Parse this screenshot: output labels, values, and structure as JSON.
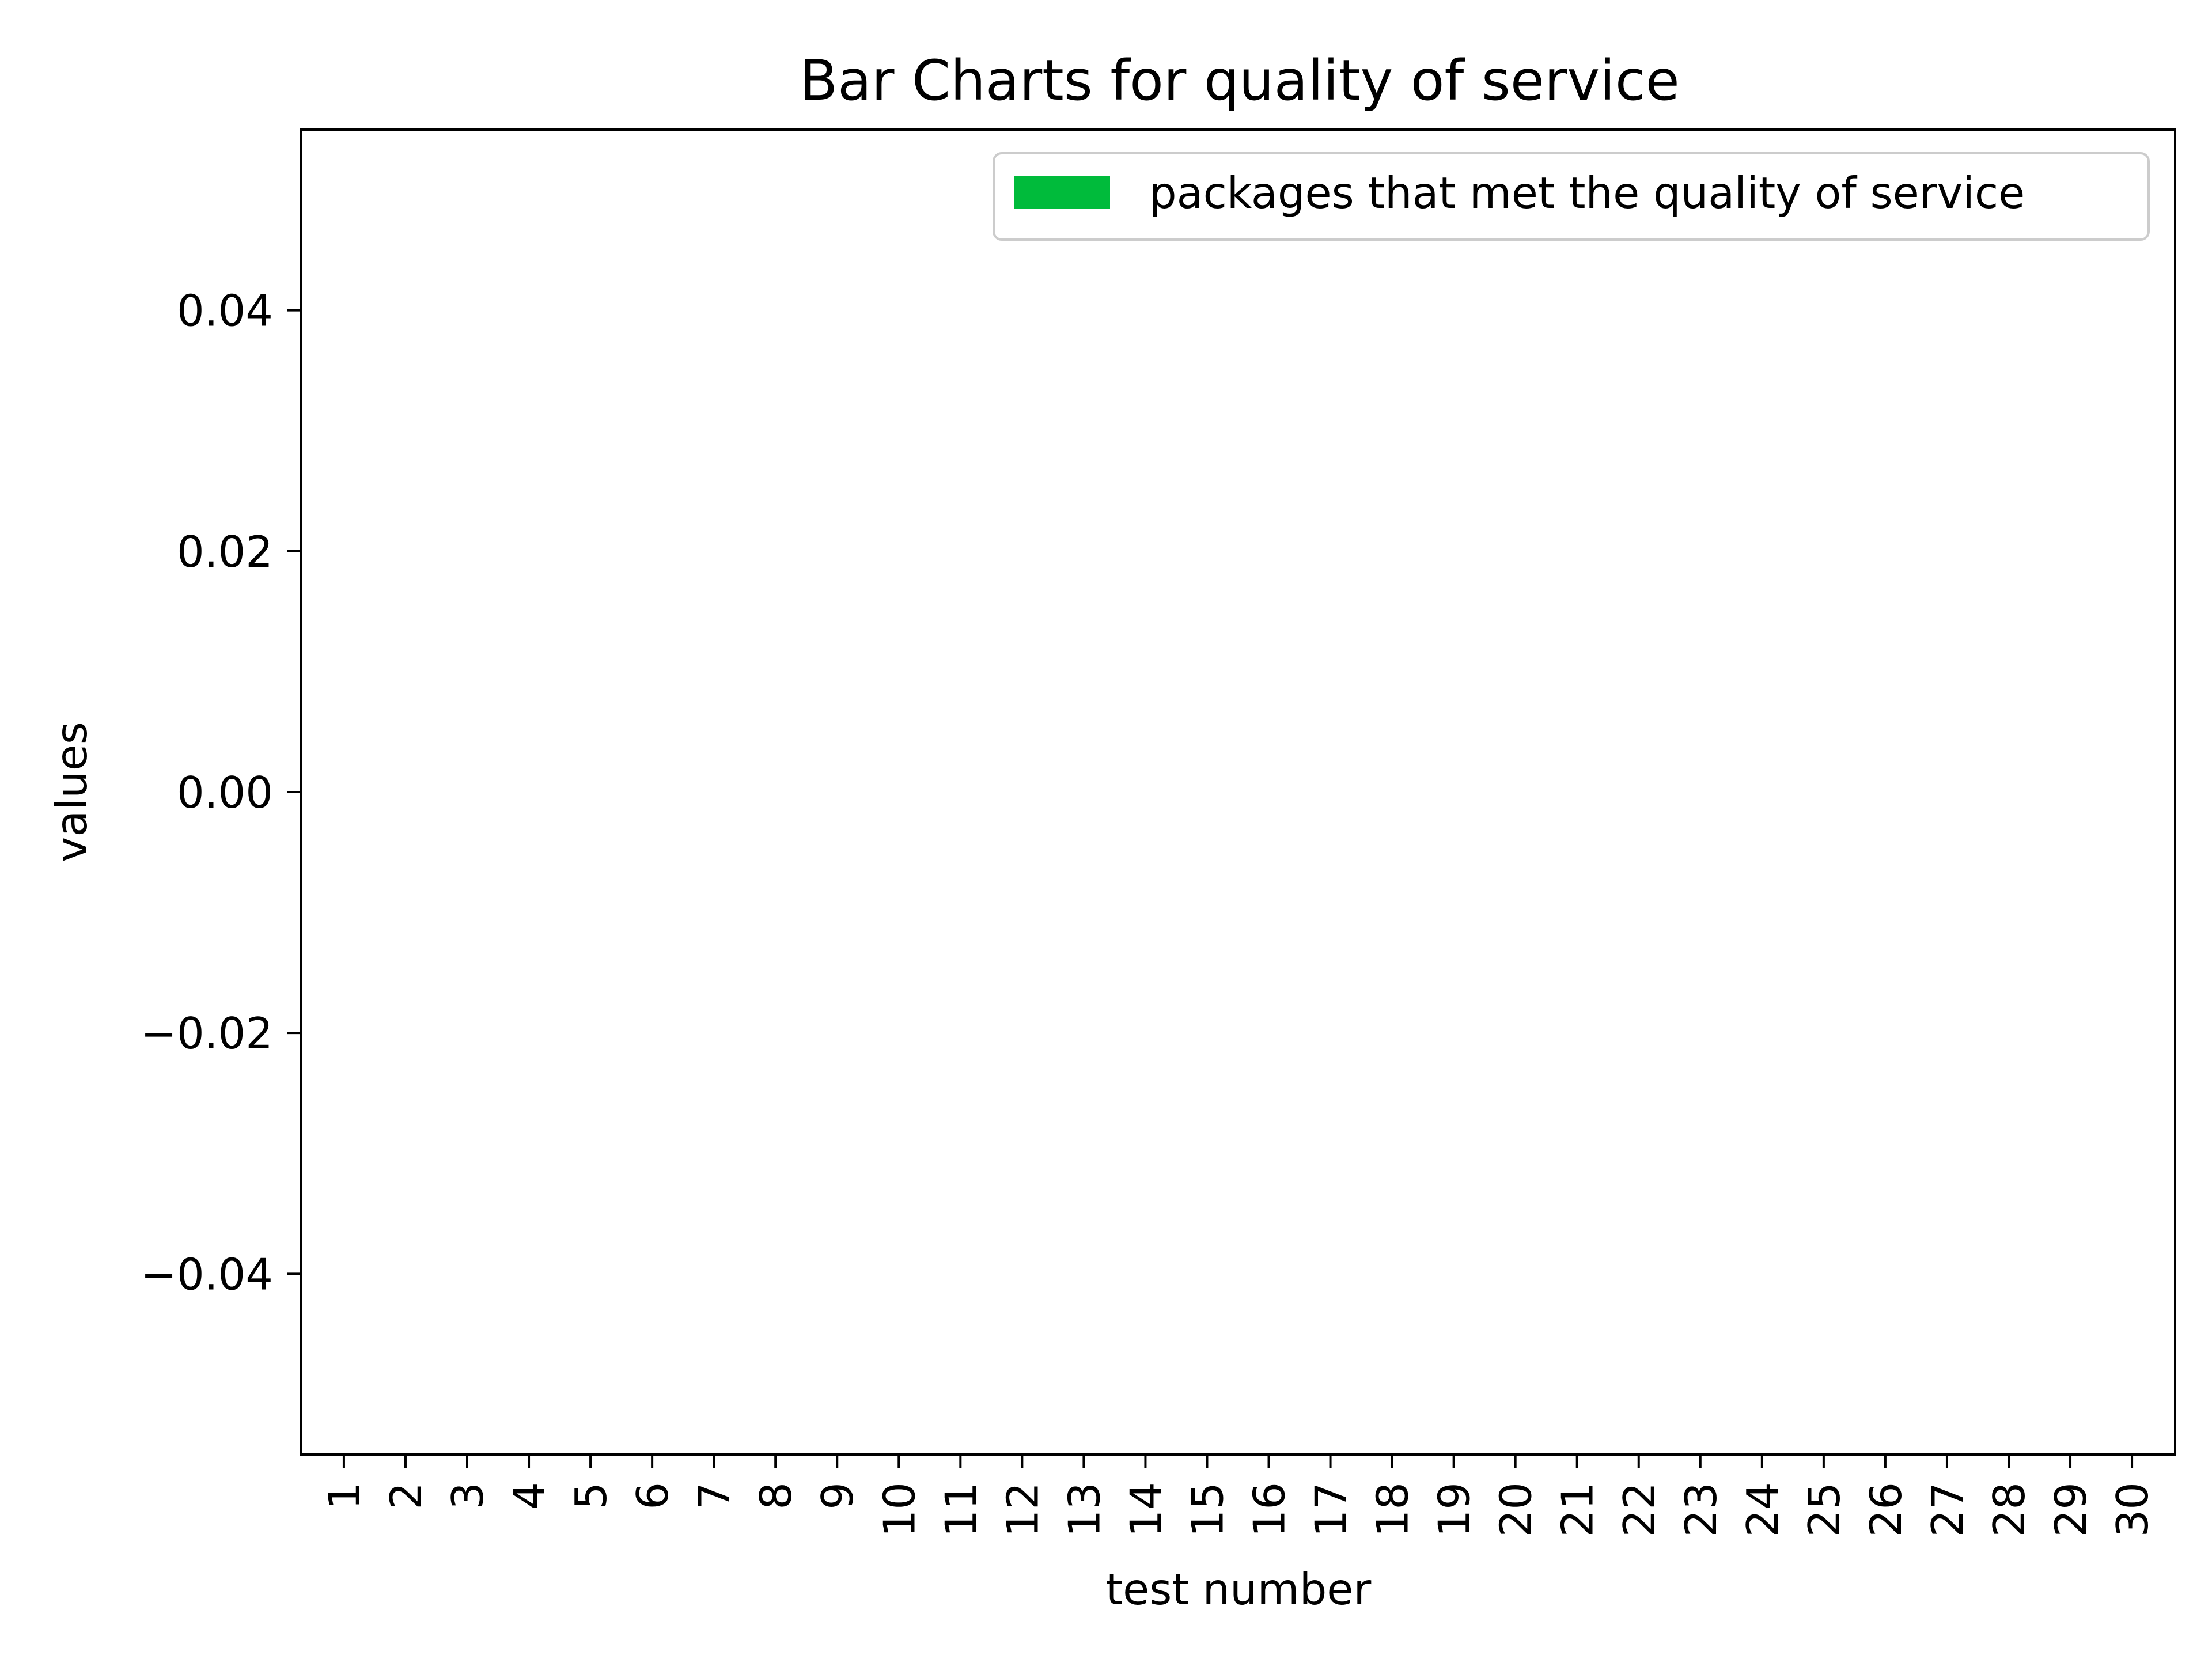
{
  "chart_data": {
    "type": "bar",
    "title": "Bar Charts for quality of service",
    "xlabel": "test number",
    "ylabel": "values",
    "categories": [
      "1",
      "2",
      "3",
      "4",
      "5",
      "6",
      "7",
      "8",
      "9",
      "10",
      "11",
      "12",
      "13",
      "14",
      "15",
      "16",
      "17",
      "18",
      "19",
      "20",
      "21",
      "22",
      "23",
      "24",
      "25",
      "26",
      "27",
      "28",
      "29",
      "30"
    ],
    "series": [
      {
        "name": "packages that met the quality of service",
        "color": "#00bb3b",
        "values": [
          0,
          0,
          0,
          0,
          0,
          0,
          0,
          0,
          0,
          0,
          0,
          0,
          0,
          0,
          0,
          0,
          0,
          0,
          0,
          0,
          0,
          0,
          0,
          0,
          0,
          0,
          0,
          0,
          0,
          0
        ]
      }
    ],
    "ylim": [
      -0.055,
      0.055
    ],
    "yticks": [
      -0.04,
      -0.02,
      0.0,
      0.02,
      0.04
    ],
    "ytick_labels": [
      "−0.04",
      "−0.02",
      "0.00",
      "0.02",
      "0.04"
    ],
    "grid": false,
    "legend_position": "top-right"
  }
}
